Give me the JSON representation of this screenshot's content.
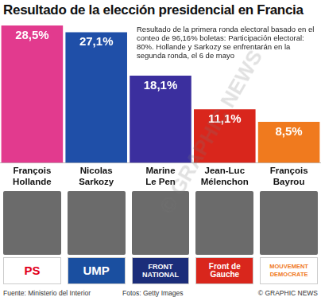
{
  "chart_data": {
    "type": "bar",
    "title": "Resultado de la elección presidencial en Francia",
    "annotation": "Resultado de la primera ronda electoral basado en el conteo de 96,16% boletas: Participación electoral: 80%. Hollande y Sarkozy se enfrentarán en la segunda ronda, el 6 de mayo",
    "categories": [
      "François Hollande",
      "Nicolas Sarkozy",
      "Marine Le Pen",
      "Jean-Luc Mélenchon",
      "François Bayrou"
    ],
    "values": [
      28.5,
      27.1,
      18.1,
      11.1,
      8.5
    ],
    "value_labels": [
      "28,5%",
      "27,1%",
      "18,1%",
      "11,1%",
      "8,5%"
    ],
    "colors": [
      "#e23a8e",
      "#1f4fa8",
      "#3b2f9e",
      "#d9261c",
      "#f07a1e"
    ],
    "ylim": [
      0,
      28.5
    ],
    "grid": false,
    "tick_labels": "x",
    "data_labels": true
  },
  "parties": [
    "PS",
    "UMP",
    "FRONT NATIONAL",
    "Front de Gauche",
    "MOUVEMENT DEMOCRATE"
  ],
  "source": "Fuente: Ministerio del Interior",
  "photo_credit": "Fotos: Getty Images",
  "copyright": "© GRAPHIC NEWS",
  "watermark": "© GRAPHIC NEWS"
}
